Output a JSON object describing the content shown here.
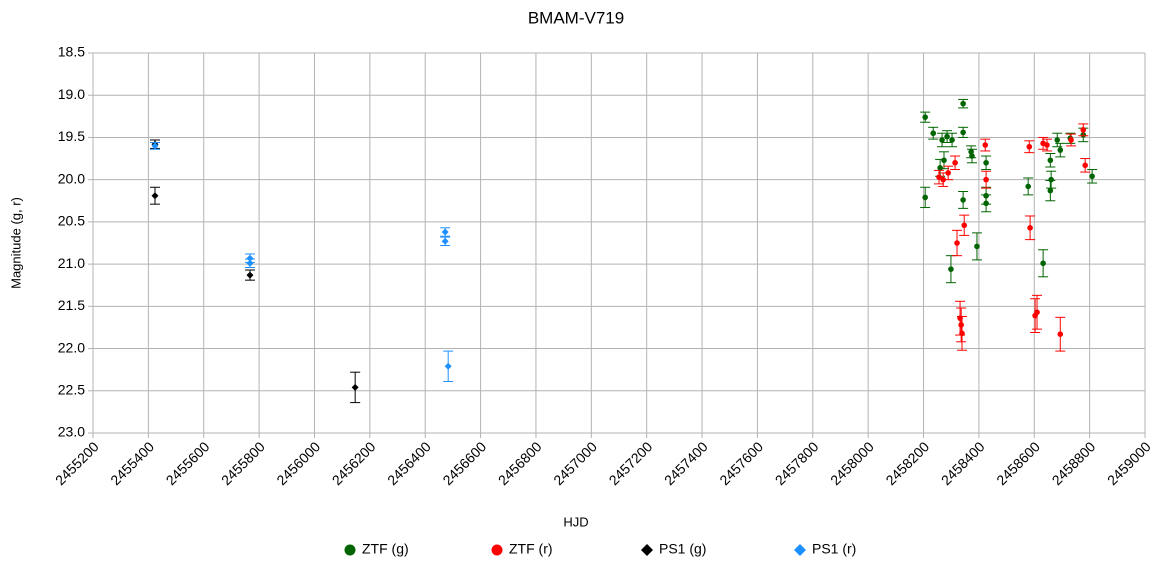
{
  "chart_data": {
    "type": "scatter",
    "title": "BMAM-V719",
    "x_label": "HJD",
    "y_label": "Magnitude (g, r)",
    "xlim": [
      2455200,
      2459000
    ],
    "xticks": [
      2455200,
      2455400,
      2455600,
      2455800,
      2456000,
      2456200,
      2456400,
      2456600,
      2456800,
      2457000,
      2457200,
      2457400,
      2457600,
      2457800,
      2458000,
      2458200,
      2458400,
      2458600,
      2458800,
      2459000
    ],
    "ylim": [
      18.5,
      23.0
    ],
    "y_inverted": true,
    "yticks": [
      {
        "value": 18.5,
        "label": "18.5"
      },
      {
        "value": 19,
        "label": "19.0"
      },
      {
        "value": 19.5,
        "label": "19.5"
      },
      {
        "value": 20,
        "label": "20.0"
      },
      {
        "value": 20.5,
        "label": "20.5"
      },
      {
        "value": 21,
        "label": "21.0"
      },
      {
        "value": 21.5,
        "label": "21.5"
      },
      {
        "value": 22,
        "label": "22.0"
      },
      {
        "value": 22.5,
        "label": "22.5"
      },
      {
        "value": 23,
        "label": "23.0"
      }
    ],
    "grid": true,
    "series": [
      {
        "name": "ZTF (g)",
        "color": "#006400",
        "marker": "circle",
        "x": [
          2458206,
          2458206,
          2458235,
          2458260,
          2458267,
          2458274,
          2458285,
          2458303,
          2458299,
          2458343,
          2458343,
          2458343,
          2458372,
          2458375,
          2458393,
          2458426,
          2458426,
          2458426,
          2458578,
          2458632,
          2458658,
          2458658,
          2458661,
          2458683,
          2458694,
          2458730,
          2458777,
          2458809
        ],
        "values": [
          19.26,
          20.21,
          19.45,
          19.86,
          19.53,
          19.77,
          19.49,
          19.53,
          21.06,
          19.1,
          19.44,
          20.24,
          19.67,
          19.72,
          20.79,
          19.8,
          20.19,
          20.28,
          20.08,
          20.99,
          19.77,
          20.13,
          20.0,
          19.53,
          19.65,
          19.51,
          19.47,
          19.96
        ],
        "errors": [
          0.06,
          0.12,
          0.07,
          0.1,
          0.08,
          0.1,
          0.07,
          0.08,
          0.16,
          0.05,
          0.06,
          0.1,
          0.07,
          0.08,
          0.16,
          0.08,
          0.1,
          0.1,
          0.1,
          0.16,
          0.08,
          0.12,
          0.1,
          0.08,
          0.08,
          0.06,
          0.08,
          0.08
        ]
      },
      {
        "name": "ZTF (r)",
        "color": "#ff0000",
        "marker": "circle",
        "x": [
          2458256,
          2458271,
          2458289,
          2458314,
          2458321,
          2458332,
          2458336,
          2458339,
          2458347,
          2458423,
          2458426,
          2458582,
          2458585,
          2458603,
          2458610,
          2458632,
          2458646,
          2458694,
          2458733,
          2458777,
          2458784
        ],
        "values": [
          19.97,
          20.0,
          19.92,
          19.8,
          20.75,
          21.64,
          21.72,
          21.82,
          20.54,
          19.59,
          20.0,
          19.61,
          20.57,
          21.61,
          21.57,
          19.57,
          19.59,
          21.83,
          19.53,
          19.41,
          19.83
        ],
        "errors": [
          0.08,
          0.08,
          0.08,
          0.08,
          0.15,
          0.2,
          0.2,
          0.2,
          0.12,
          0.07,
          0.1,
          0.07,
          0.14,
          0.2,
          0.2,
          0.07,
          0.07,
          0.2,
          0.07,
          0.07,
          0.08
        ]
      },
      {
        "name": "PS1 (g)",
        "color": "#000000",
        "marker": "diamond",
        "x": [
          2455424,
          2455424,
          2455767,
          2456147
        ],
        "values": [
          19.58,
          20.19,
          21.13,
          22.46
        ],
        "errors": [
          0.05,
          0.1,
          0.06,
          0.18
        ]
      },
      {
        "name": "PS1 (r)",
        "color": "#1e90ff",
        "marker": "diamond",
        "x": [
          2455424,
          2455767,
          2455767,
          2456472,
          2456472,
          2456483
        ],
        "values": [
          19.6,
          20.93,
          20.99,
          20.62,
          20.73,
          22.21
        ],
        "errors": [
          0.04,
          0.05,
          0.05,
          0.05,
          0.05,
          0.18
        ]
      }
    ]
  }
}
